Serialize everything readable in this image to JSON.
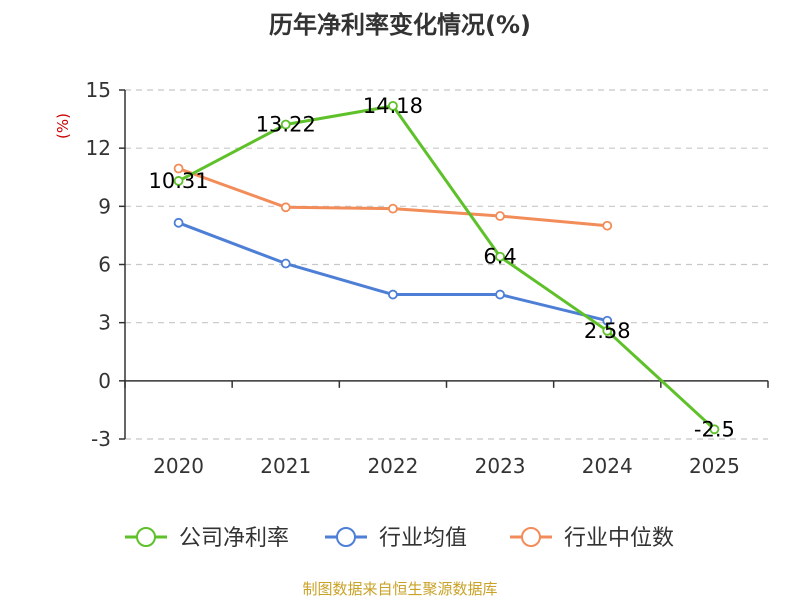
{
  "title": "历年净利率变化情况(%)",
  "source": "制图数据来自恒生聚源数据库",
  "chart_data": {
    "type": "line",
    "title": "历年净利率变化情况(%)",
    "ylabel": "(%)",
    "xlabel": "",
    "categories": [
      "2020",
      "2021",
      "2022",
      "2023",
      "2024",
      "2025"
    ],
    "ylim": [
      -3,
      15
    ],
    "yticks": [
      "15",
      "12",
      "9",
      "6",
      "3",
      "0",
      "-3"
    ],
    "grid": true,
    "legend_position": "bottom",
    "series": [
      {
        "name": "公司净利率",
        "color": "#5ec12a",
        "values": [
          10.31,
          13.22,
          14.18,
          6.4,
          2.58,
          -2.5
        ],
        "labels": [
          "10.31",
          "13.22",
          "14.18",
          "6.4",
          "2.58",
          "-2.5"
        ]
      },
      {
        "name": "行业均值",
        "color": "#4e7fd6",
        "values": [
          8.15,
          6.05,
          4.45,
          4.45,
          3.1,
          null
        ]
      },
      {
        "name": "行业中位数",
        "color": "#f28c58",
        "values": [
          10.95,
          8.95,
          8.88,
          8.5,
          8.0,
          null
        ]
      }
    ]
  }
}
